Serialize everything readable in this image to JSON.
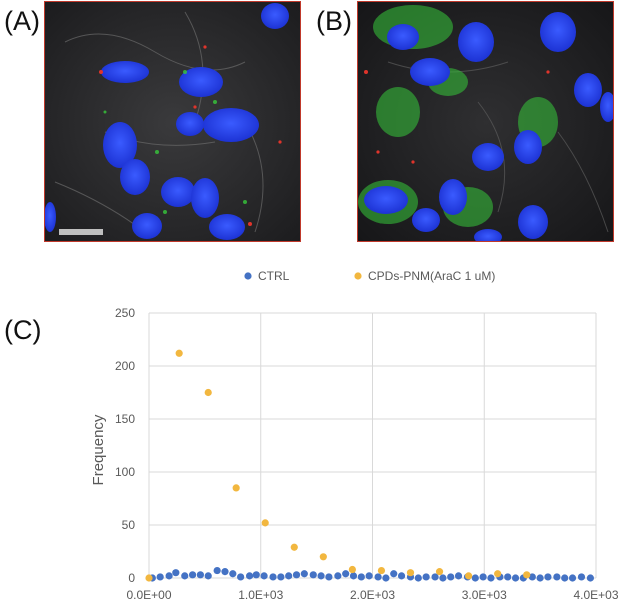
{
  "panels": {
    "a_label": "(A)",
    "b_label": "(B)",
    "c_label": "(C)"
  },
  "colors": {
    "ctrl": "#4472c4",
    "cpds": "#f2b73f",
    "frame": "#c0392b",
    "nucleus": "#1f3ee0",
    "membrane": "#37c93b",
    "grid": "#d9d9d9"
  },
  "chart_data": {
    "type": "scatter",
    "ylabel": "Frequency",
    "xlabel": "",
    "xlim": [
      0,
      4000
    ],
    "ylim": [
      0,
      250
    ],
    "x_ticks": [
      "0.0E+00",
      "1.0E+03",
      "2.0E+03",
      "3.0E+03",
      "4.0E+03"
    ],
    "y_ticks": [
      "0",
      "50",
      "100",
      "150",
      "200",
      "250"
    ],
    "grid": "major",
    "legend_position": "top",
    "series": [
      {
        "name": "CTRL",
        "color": "#4472c4",
        "points": [
          [
            30,
            0
          ],
          [
            100,
            1
          ],
          [
            180,
            2
          ],
          [
            240,
            5
          ],
          [
            320,
            2
          ],
          [
            390,
            3
          ],
          [
            460,
            3
          ],
          [
            530,
            2
          ],
          [
            610,
            7
          ],
          [
            680,
            6
          ],
          [
            750,
            4
          ],
          [
            820,
            1
          ],
          [
            900,
            2
          ],
          [
            960,
            3
          ],
          [
            1030,
            2
          ],
          [
            1110,
            1
          ],
          [
            1180,
            1
          ],
          [
            1250,
            2
          ],
          [
            1320,
            3
          ],
          [
            1390,
            4
          ],
          [
            1470,
            3
          ],
          [
            1540,
            2
          ],
          [
            1610,
            1
          ],
          [
            1690,
            2
          ],
          [
            1760,
            4
          ],
          [
            1830,
            2
          ],
          [
            1900,
            1
          ],
          [
            1970,
            2
          ],
          [
            2050,
            1
          ],
          [
            2120,
            0
          ],
          [
            2190,
            4
          ],
          [
            2260,
            2
          ],
          [
            2340,
            1
          ],
          [
            2410,
            0
          ],
          [
            2480,
            1
          ],
          [
            2560,
            1
          ],
          [
            2630,
            0
          ],
          [
            2700,
            1
          ],
          [
            2770,
            2
          ],
          [
            2850,
            1
          ],
          [
            2920,
            0
          ],
          [
            2990,
            1
          ],
          [
            3060,
            0
          ],
          [
            3140,
            1
          ],
          [
            3210,
            1
          ],
          [
            3280,
            0
          ],
          [
            3350,
            0
          ],
          [
            3430,
            1
          ],
          [
            3500,
            0
          ],
          [
            3570,
            1
          ],
          [
            3650,
            1
          ],
          [
            3720,
            0
          ],
          [
            3790,
            0
          ],
          [
            3870,
            1
          ],
          [
            3950,
            0
          ]
        ]
      },
      {
        "name": "CPDs-PNM(AraC 1 uM)",
        "color": "#f2b73f",
        "points": [
          [
            0,
            0
          ],
          [
            270,
            212
          ],
          [
            530,
            175
          ],
          [
            780,
            85
          ],
          [
            1040,
            52
          ],
          [
            1300,
            29
          ],
          [
            1560,
            20
          ],
          [
            1820,
            8
          ],
          [
            2080,
            7
          ],
          [
            2340,
            5
          ],
          [
            2600,
            6
          ],
          [
            2860,
            2
          ],
          [
            3120,
            4
          ],
          [
            3380,
            3
          ]
        ]
      }
    ]
  }
}
